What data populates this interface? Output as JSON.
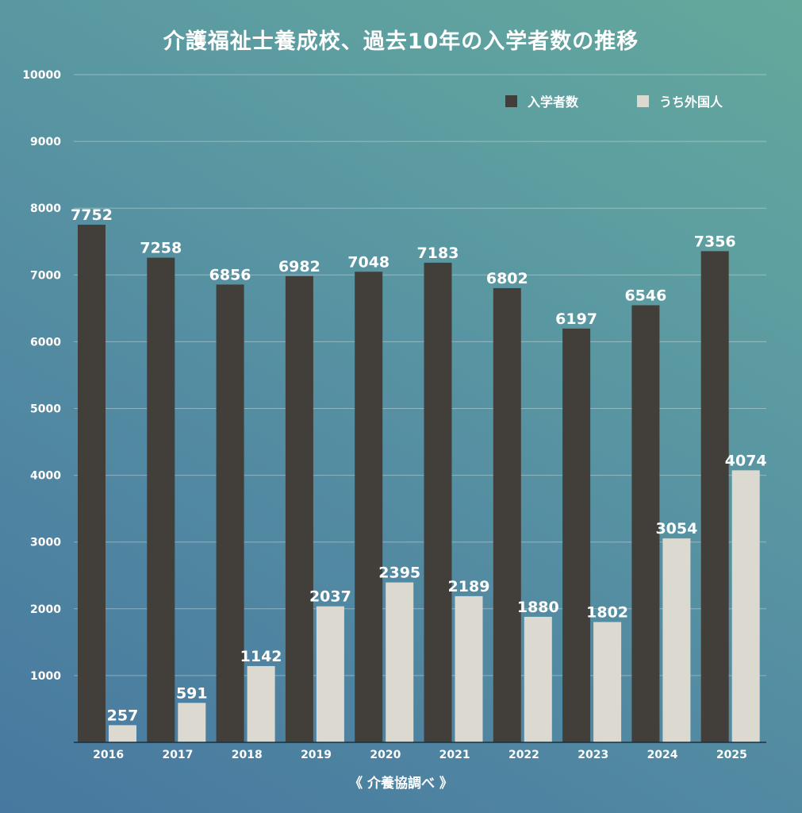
{
  "chart_data": {
    "type": "bar",
    "title": "介護福祉士養成校、過去10年の入学者数の推移",
    "source": "《 介養協調べ 》",
    "categories": [
      "2016",
      "2017",
      "2018",
      "2019",
      "2020",
      "2021",
      "2022",
      "2023",
      "2024",
      "2025"
    ],
    "series": [
      {
        "name": "入学者数",
        "color": "#423f3a",
        "values": [
          7752,
          7258,
          6856,
          6982,
          7048,
          7183,
          6802,
          6197,
          6546,
          7356
        ]
      },
      {
        "name": "うち外国人",
        "color": "#dcd9d0",
        "values": [
          257,
          591,
          1142,
          2037,
          2395,
          2189,
          1880,
          1802,
          3054,
          4074
        ]
      }
    ],
    "ylim": [
      0,
      10000
    ],
    "yticks": [
      1000,
      2000,
      3000,
      4000,
      5000,
      6000,
      7000,
      8000,
      9000,
      10000
    ],
    "grid": true,
    "legend_position": "top-right",
    "xlabel": "",
    "ylabel": ""
  }
}
